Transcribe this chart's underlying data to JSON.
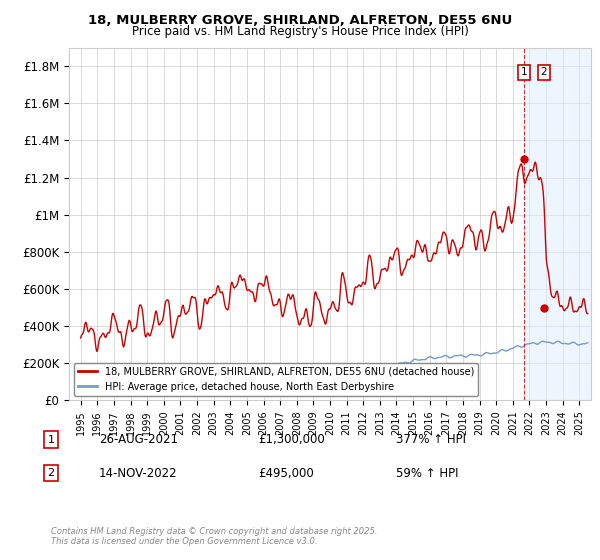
{
  "title_line1": "18, MULBERRY GROVE, SHIRLAND, ALFRETON, DE55 6NU",
  "title_line2": "Price paid vs. HM Land Registry's House Price Index (HPI)",
  "legend_label1": "18, MULBERRY GROVE, SHIRLAND, ALFRETON, DE55 6NU (detached house)",
  "legend_label2": "HPI: Average price, detached house, North East Derbyshire",
  "annotation1_label": "1",
  "annotation1_date": "26-AUG-2021",
  "annotation1_price": "£1,300,000",
  "annotation1_hpi": "377% ↑ HPI",
  "annotation2_label": "2",
  "annotation2_date": "14-NOV-2022",
  "annotation2_price": "£495,000",
  "annotation2_hpi": "59% ↑ HPI",
  "footer": "Contains HM Land Registry data © Crown copyright and database right 2025.\nThis data is licensed under the Open Government Licence v3.0.",
  "line1_color": "#cc0000",
  "line2_color": "#7799cc",
  "vline1_color": "#cc0000",
  "vline2_color": "#cc0000",
  "background_color": "#ffffff",
  "grid_color": "#cccccc",
  "shade_color": "#ddeeff",
  "ylim": [
    0,
    1900000
  ],
  "yticks": [
    0,
    200000,
    400000,
    600000,
    800000,
    1000000,
    1200000,
    1400000,
    1600000,
    1800000
  ],
  "ytick_labels": [
    "£0",
    "£200K",
    "£400K",
    "£600K",
    "£800K",
    "£1M",
    "£1.2M",
    "£1.4M",
    "£1.6M",
    "£1.8M"
  ],
  "vline1_x": 2021.65,
  "vline2_x": 2022.87,
  "purchase1_y": 1300000,
  "purchase2_y": 495000,
  "xlim_min": 1994.3,
  "xlim_max": 2025.7
}
